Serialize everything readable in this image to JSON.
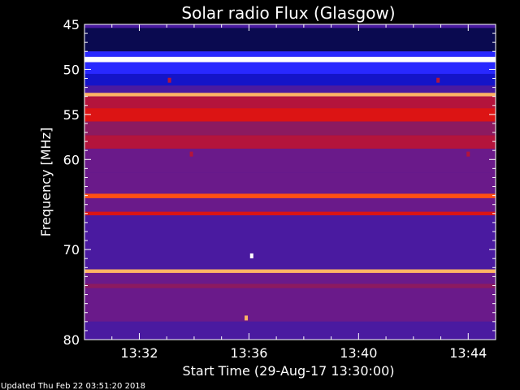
{
  "chart_data": {
    "type": "heatmap",
    "title": "Solar radio Flux (Glasgow)",
    "ylabel": "Frequency [MHz]",
    "xlabel": "Start Time (29-Aug-17 13:30:00)",
    "footer": "Updated Thu Feb 22 03:51:20 2018",
    "x_unit": "minutes after 13:30:00",
    "xlim": [
      0,
      15
    ],
    "ylim": [
      45,
      80
    ],
    "y_inverted": true,
    "xticks": [
      {
        "value": 2,
        "label": "13:32"
      },
      {
        "value": 6,
        "label": "13:36"
      },
      {
        "value": 10,
        "label": "13:40"
      },
      {
        "value": 14,
        "label": "13:44"
      }
    ],
    "yticks": [
      {
        "value": 45,
        "label": "45"
      },
      {
        "value": 50,
        "label": "50"
      },
      {
        "value": 55,
        "label": "55"
      },
      {
        "value": 60,
        "label": "60"
      },
      {
        "value": 70,
        "label": "70"
      },
      {
        "value": 80,
        "label": "80"
      }
    ],
    "colormap": [
      "#00000a",
      "#0a0a50",
      "#1414c8",
      "#2828ff",
      "#4a1aa0",
      "#6a1a8a",
      "#8c1a60",
      "#b4143c",
      "#dc1414",
      "#ff5014",
      "#ffb464",
      "#ffffff"
    ],
    "intensity_levels": [
      {
        "f0": 45.0,
        "f1": 45.4,
        "level": 0.35
      },
      {
        "f0": 45.4,
        "f1": 48.0,
        "level": 0.08
      },
      {
        "f0": 48.0,
        "f1": 48.6,
        "level": 0.3
      },
      {
        "f0": 48.6,
        "f1": 49.2,
        "level": 1.0
      },
      {
        "f0": 49.2,
        "f1": 50.5,
        "level": 0.28
      },
      {
        "f0": 50.5,
        "f1": 51.8,
        "level": 0.22
      },
      {
        "f0": 51.8,
        "f1": 52.6,
        "level": 0.4
      },
      {
        "f0": 52.6,
        "f1": 53.0,
        "level": 0.9
      },
      {
        "f0": 53.0,
        "f1": 54.3,
        "level": 0.62
      },
      {
        "f0": 54.3,
        "f1": 55.8,
        "level": 0.76
      },
      {
        "f0": 55.8,
        "f1": 57.3,
        "level": 0.55
      },
      {
        "f0": 57.3,
        "f1": 58.8,
        "level": 0.66
      },
      {
        "f0": 58.8,
        "f1": 61.5,
        "level": 0.48
      },
      {
        "f0": 61.5,
        "f1": 63.8,
        "level": 0.42
      },
      {
        "f0": 63.8,
        "f1": 64.3,
        "level": 0.8
      },
      {
        "f0": 64.3,
        "f1": 65.8,
        "level": 0.46
      },
      {
        "f0": 65.8,
        "f1": 66.2,
        "level": 0.74
      },
      {
        "f0": 66.2,
        "f1": 69.0,
        "level": 0.4
      },
      {
        "f0": 69.0,
        "f1": 72.2,
        "level": 0.38
      },
      {
        "f0": 72.2,
        "f1": 72.6,
        "level": 0.92
      },
      {
        "f0": 72.6,
        "f1": 73.8,
        "level": 0.44
      },
      {
        "f0": 73.8,
        "f1": 74.3,
        "level": 0.58
      },
      {
        "f0": 74.3,
        "f1": 78.0,
        "level": 0.42
      },
      {
        "f0": 78.0,
        "f1": 80.0,
        "level": 0.4
      }
    ],
    "bursts": [
      {
        "t": 6.1,
        "f": 70.7,
        "level": 1.0
      },
      {
        "t": 5.9,
        "f": 77.6,
        "level": 0.9
      },
      {
        "t": 3.1,
        "f": 51.2,
        "level": 0.6
      },
      {
        "t": 12.9,
        "f": 51.2,
        "level": 0.6
      },
      {
        "t": 3.9,
        "f": 59.4,
        "level": 0.65
      },
      {
        "t": 14.0,
        "f": 59.4,
        "level": 0.65
      }
    ]
  }
}
